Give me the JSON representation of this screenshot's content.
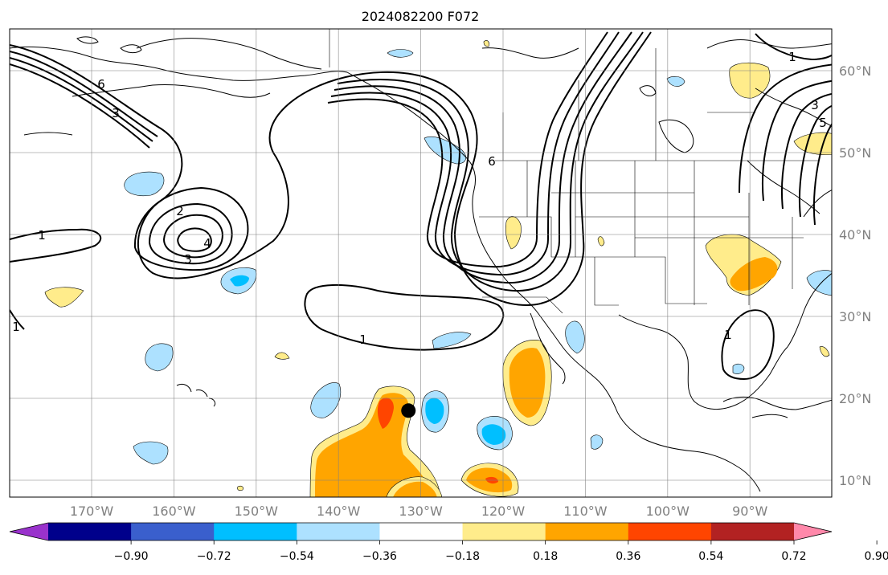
{
  "title": "2024082200 F072",
  "lon_labels": [
    "170°W",
    "160°W",
    "150°W",
    "140°W",
    "130°W",
    "120°W",
    "110°W",
    "100°W",
    "90°W"
  ],
  "lat_labels": [
    "10°N",
    "20°N",
    "30°N",
    "40°N",
    "50°N",
    "60°N"
  ],
  "contour_labels": [
    "1",
    "1",
    "1",
    "1",
    "2",
    "3",
    "4",
    "3",
    "6",
    "6",
    "1",
    "5",
    "3"
  ],
  "colorbar": {
    "tick_labels": [
      "−0.90",
      "−0.72",
      "−0.54",
      "−0.36",
      "−0.18",
      "0.18",
      "0.36",
      "0.54",
      "0.72",
      "0.90"
    ],
    "colors": [
      "#9932CC",
      "#00008B",
      "#3A5FCD",
      "#00BFFF",
      "#ADE1FF",
      "#FFFFFF",
      "#FFEC8B",
      "#FFA500",
      "#FF4500",
      "#B22222",
      "#FF88AA"
    ]
  },
  "storm_marker": {
    "lon": -131.5,
    "lat": 18.5
  }
}
